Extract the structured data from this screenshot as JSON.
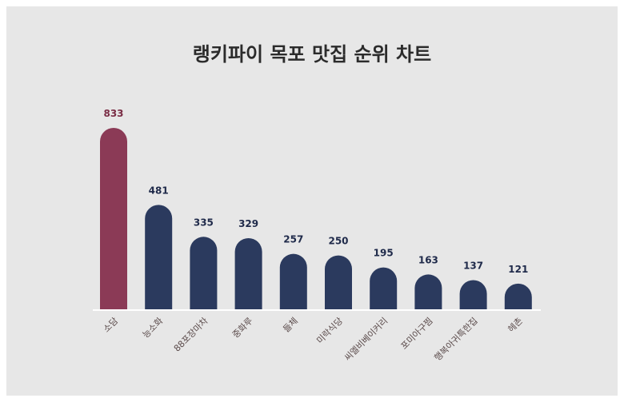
{
  "chart_data": {
    "type": "bar",
    "title": "랭키파이 목포 맛집 순위 차트",
    "xlabel": "",
    "ylabel": "",
    "categories": [
      "소담",
      "능소화",
      "88포장마차",
      "중화루",
      "들체",
      "미락식당",
      "씨엘비베이커리",
      "포미아구찜",
      "행복아귀특한집",
      "헤촌"
    ],
    "values": [
      833,
      481,
      335,
      329,
      257,
      250,
      195,
      163,
      137,
      121
    ],
    "ylim": [
      0,
      833
    ],
    "grid": false,
    "legend": "none",
    "colors": {
      "highlight": "#8b3a56",
      "default": "#2b3a5e",
      "highlight_label": "#7a2d45",
      "default_label": "#1f2a4a",
      "baseline": "#ffffff"
    }
  }
}
